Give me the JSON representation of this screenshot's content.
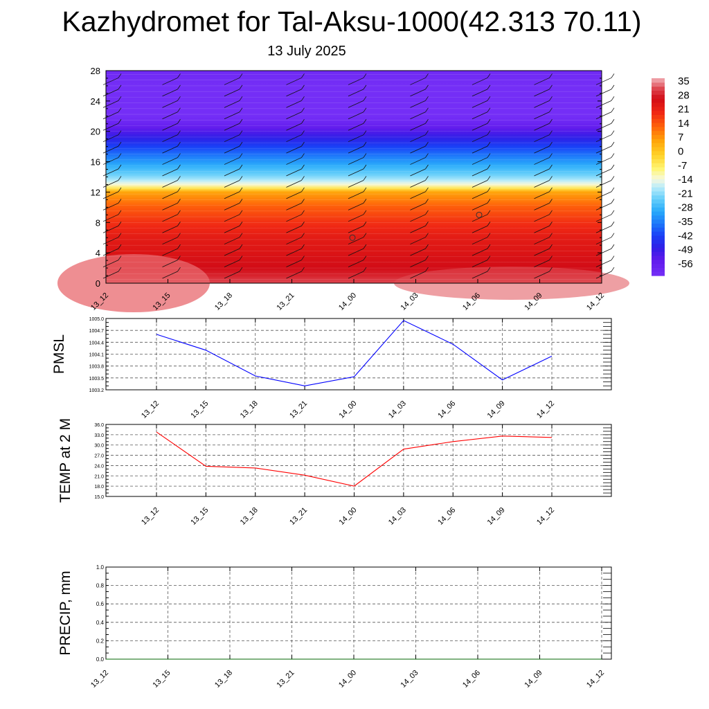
{
  "title": "Kazhydromet for Tal-Aksu-1000(42.313 70.11)",
  "subtitle": "13 July 2025",
  "time_labels": [
    "13_12",
    "13_15",
    "13_18",
    "13_21",
    "14_00",
    "14_03",
    "14_06",
    "14_09",
    "14_12"
  ],
  "colors": {
    "pmsl_line": "#0000ff",
    "temp_line": "#ff0000",
    "precip_line": "#006400",
    "grid": "#555555"
  },
  "chart_data": [
    {
      "type": "heatmap",
      "name": "",
      "xlabel": "",
      "ylabel": "",
      "x": [
        "13_12",
        "13_15",
        "13_18",
        "13_21",
        "14_00",
        "14_03",
        "14_06",
        "14_09",
        "14_12"
      ],
      "y_ticks": [
        "0",
        "4",
        "8",
        "12",
        "16",
        "20",
        "24",
        "28"
      ],
      "ylim": [
        0,
        28
      ],
      "colorbar_labels": [
        "35",
        "28",
        "21",
        "14",
        "7",
        "0",
        "-7",
        "-14",
        "-21",
        "-28",
        "-35",
        "-42",
        "-49",
        "-56"
      ],
      "colorbar_range": [
        -60,
        38
      ],
      "profile_levels": [
        0,
        1,
        2,
        4,
        6,
        8,
        10,
        12,
        12.8,
        14,
        16,
        18,
        20,
        21,
        22,
        24,
        26,
        28
      ],
      "profile_temps": [
        33,
        30,
        28,
        26,
        24,
        20,
        15,
        7,
        -10,
        -20,
        -30,
        -40,
        -50,
        -56,
        -60,
        -62,
        -60,
        -58
      ],
      "has_wind_barbs": true
    },
    {
      "type": "line",
      "name": "",
      "xlabel": "",
      "ylabel": "PMSL",
      "x": [
        "13_12",
        "13_15",
        "13_18",
        "13_21",
        "14_00",
        "14_03",
        "14_06",
        "14_09",
        "14_12"
      ],
      "series": [
        {
          "name": "",
          "values": [
            1004.6,
            1004.2,
            1003.55,
            1003.3,
            1003.53,
            1004.95,
            1004.35,
            1003.45,
            1004.05
          ]
        }
      ],
      "y_ticks": [
        "1005.0",
        "1004.7",
        "1004.4",
        "1004.1",
        "1003.8",
        "1003.5",
        "1003.2"
      ],
      "ylim": [
        1003.2,
        1005.0
      ],
      "grid": true
    },
    {
      "type": "line",
      "name": "",
      "xlabel": "",
      "ylabel": "TEMP at 2 M",
      "x": [
        "13_12",
        "13_15",
        "13_18",
        "13_21",
        "14_00",
        "14_03",
        "14_06",
        "14_09",
        "14_12"
      ],
      "series": [
        {
          "name": "",
          "values": [
            33.8,
            23.8,
            23.3,
            21.2,
            18.0,
            28.8,
            31.0,
            32.6,
            32.2
          ]
        }
      ],
      "y_ticks": [
        "36.0",
        "33.0",
        "30.0",
        "27.0",
        "24.0",
        "21.0",
        "18.0",
        "15.0"
      ],
      "ylim": [
        15.0,
        36.0
      ],
      "grid": true
    },
    {
      "type": "line",
      "name": "",
      "xlabel": "",
      "ylabel": "PRECIP, mm",
      "x": [
        "13_12",
        "13_15",
        "13_18",
        "13_21",
        "14_00",
        "14_03",
        "14_06",
        "14_09",
        "14_12"
      ],
      "series": [
        {
          "name": "",
          "values": [
            0,
            0,
            0,
            0,
            0,
            0,
            0,
            0,
            0
          ]
        }
      ],
      "y_ticks": [
        "1.0",
        "0.8",
        "0.6",
        "0.4",
        "0.2",
        "0.0"
      ],
      "ylim": [
        0.0,
        1.0
      ],
      "grid": true
    }
  ]
}
